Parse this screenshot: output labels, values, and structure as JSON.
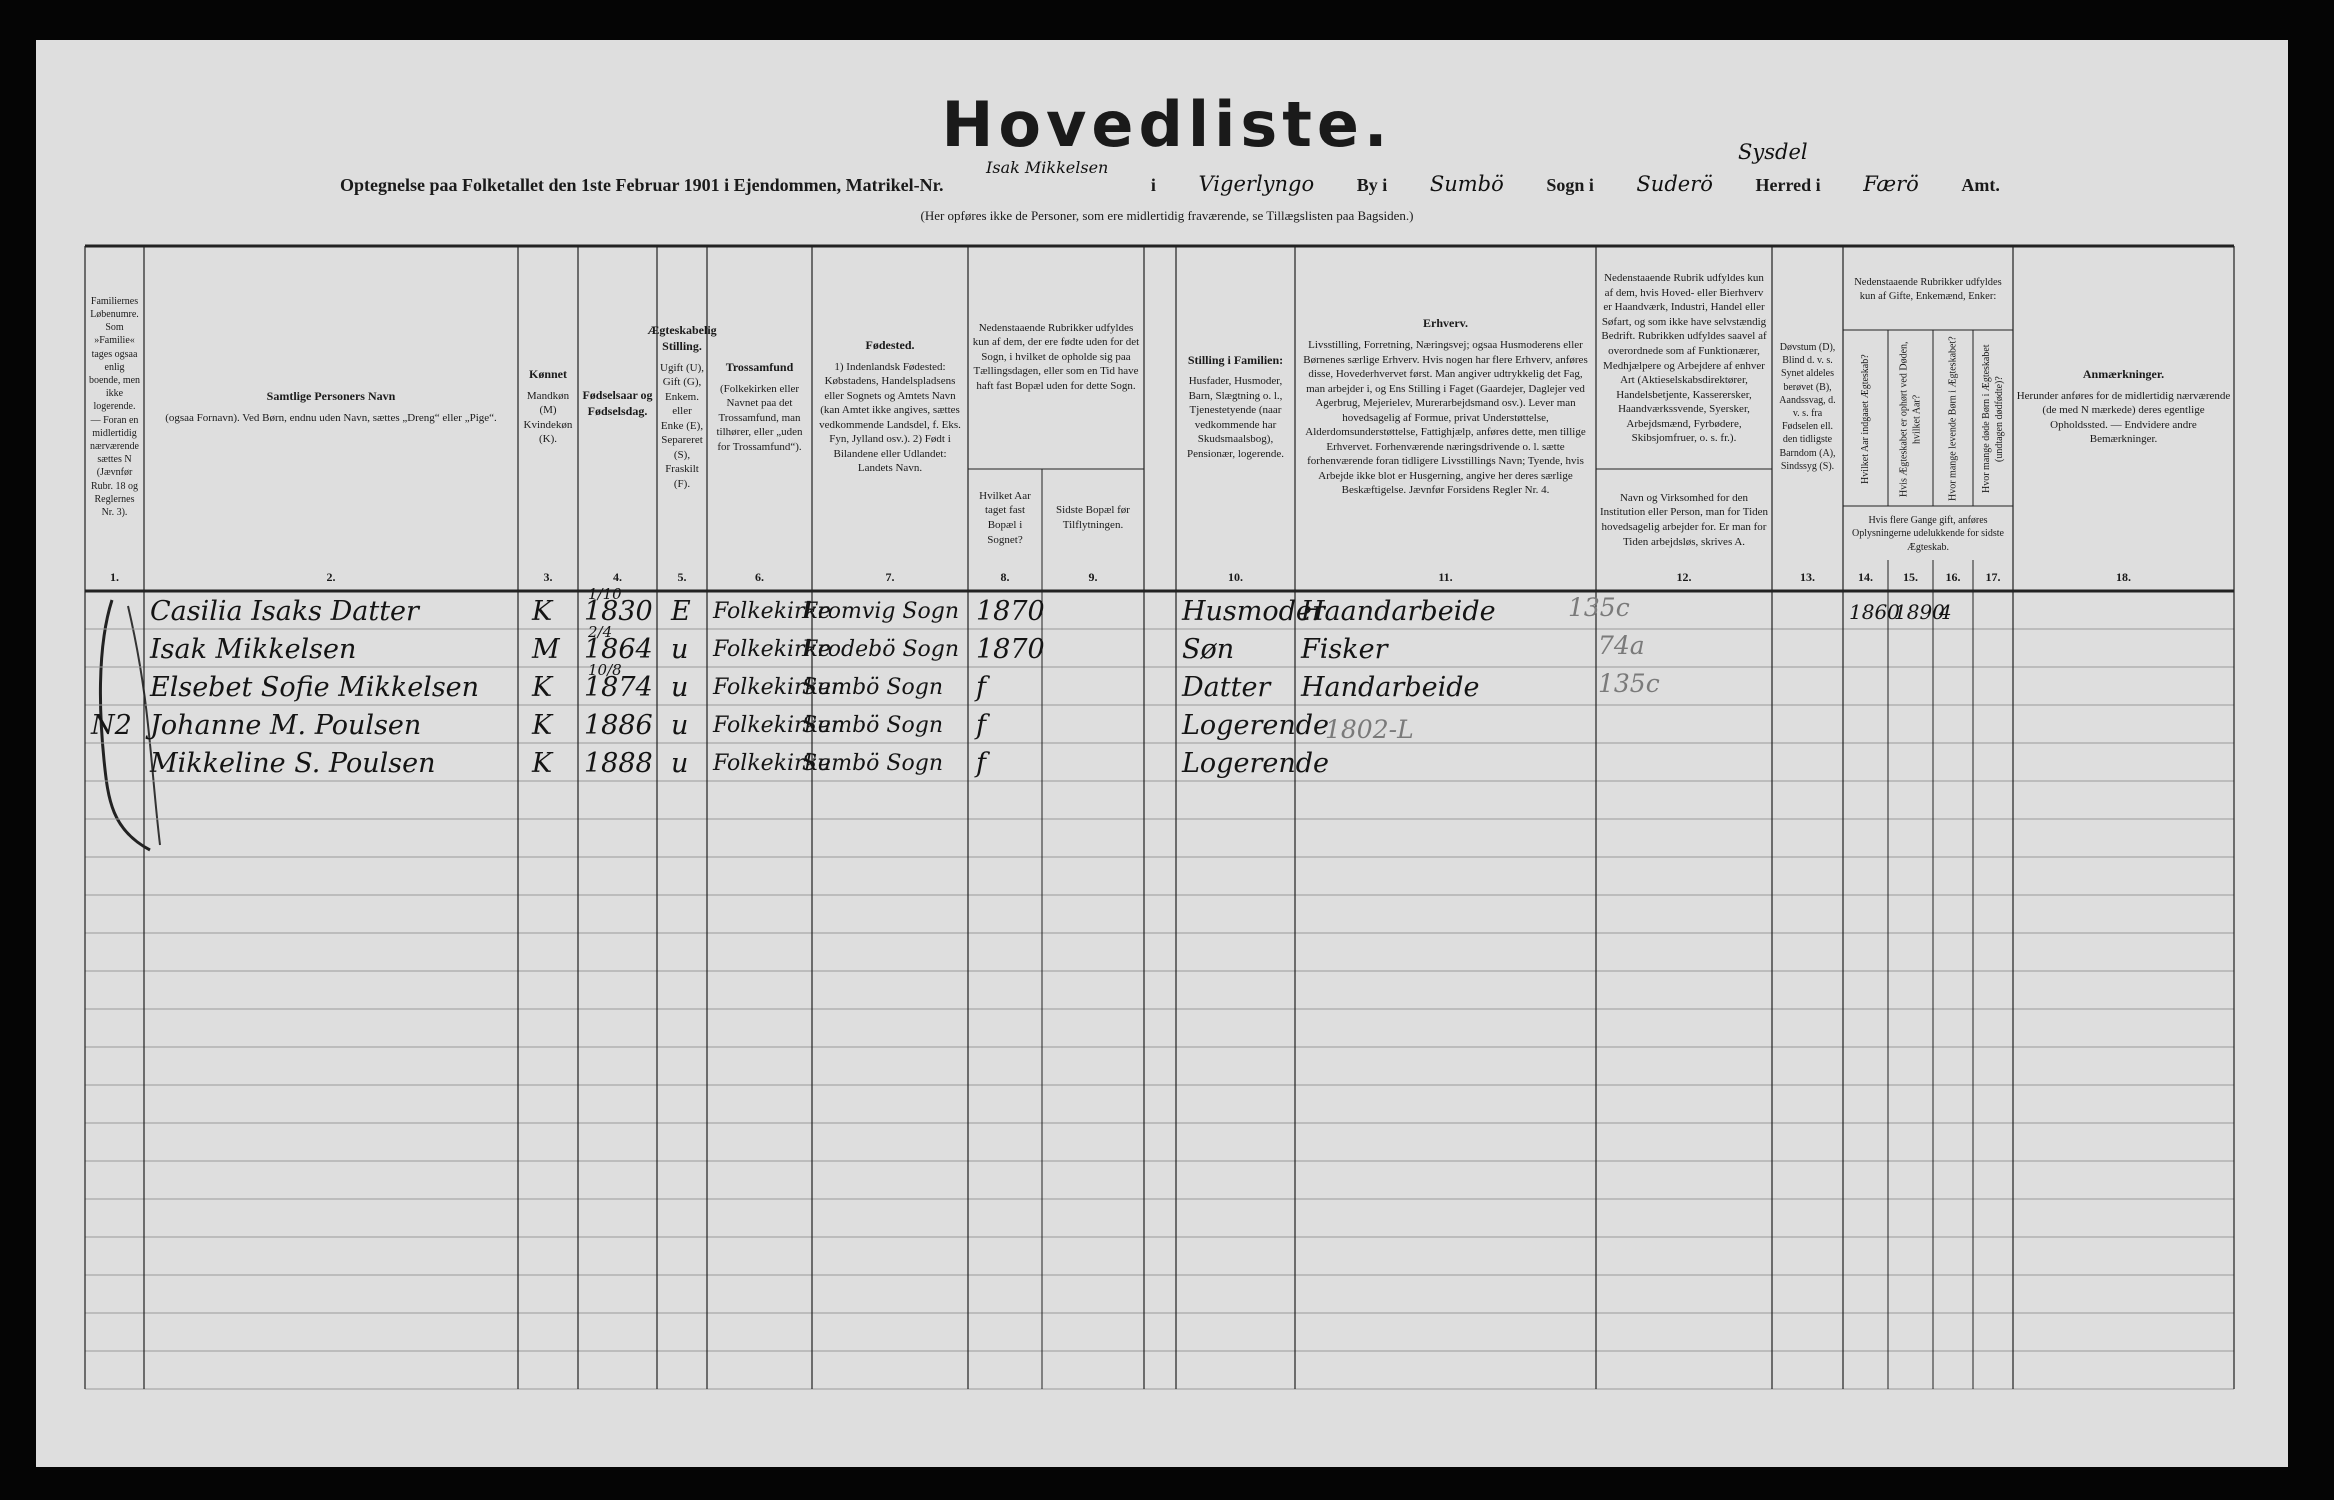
{
  "header": {
    "title": "Hovedliste.",
    "form_line": {
      "p1": "Optegnelse paa Folketallet den 1ste Februar 1901 i Ejendommen, Matrikel-Nr.",
      "matrikel": "Isak Mikkelsen",
      "p2": "i",
      "place": "Vigerlyngo",
      "p3": "By i",
      "by": "Sumbö",
      "p4": "Sogn i",
      "sogn": "Suderö",
      "p5": "Herred i",
      "herred_above": "Sysdel",
      "amt": "Færö",
      "p6": "Amt."
    },
    "note": "(Her opføres ikke de Personer, som ere midlertidig fraværende, se Tillægslisten paa Bagsiden.)"
  },
  "groups": {
    "born_outside": "Nedenstaaende Rubrikker udfyldes kun af dem, der ere fødte uden for det Sogn, i hvilket de opholde sig paa Tællingsdagen, eller som en Tid have haft fast Bopæl uden for dette Sogn.",
    "married": "Nedenstaaende Rubrikker udfyldes kun af Gifte, Enkemænd, Enker:",
    "married_note": "Hvis flere Gange gift, anføres Oplysningerne udelukkende for sidste Ægteskab."
  },
  "columns": [
    {
      "number": "1.",
      "text": "Familiernes Løbenumre. Som »Familie« tages ogsaa enlig boende, men ikke logerende. — Foran en midlertidig nærværende sættes N (Jævnfør Rubr. 18 og Reglernes Nr. 3)."
    },
    {
      "number": "2.",
      "title": "Samtlige Personers Navn",
      "text": "(ogsaa Fornavn). Ved Børn, endnu uden Navn, sættes „Dreng“ eller „Pige“."
    },
    {
      "number": "3.",
      "title": "Kønnet",
      "text": "Mandkøn (M) Kvindekøn (K)."
    },
    {
      "number": "4.",
      "title": "Fødselsaar og Fødselsdag."
    },
    {
      "number": "5.",
      "title": "Ægteskabelig Stilling.",
      "text": "Ugift (U), Gift (G), Enkem. eller Enke (E), Separeret (S), Fraskilt (F)."
    },
    {
      "number": "6.",
      "title": "Trossamfund",
      "text": "(Folkekirken eller Navnet paa det Trossamfund, man tilhører, eller „uden for Trossamfund“)."
    },
    {
      "number": "7.",
      "title": "Fødested.",
      "text": "1) Indenlandsk Fødested: Købstadens, Handelspladsens eller Sognets og Amtets Navn (kan Amtet ikke angives, sættes vedkommende Landsdel, f. Eks. Fyn, Jylland osv.). 2) Født i Bilandene eller Udlandet: Landets Navn."
    },
    {
      "number": "8.",
      "text": "Hvilket Aar taget fast Bopæl i Sognet?"
    },
    {
      "number": "9.",
      "text": "Sidste Bopæl før Tilflytningen."
    },
    {
      "number": "10.",
      "title": "Stilling i Familien:",
      "text": "Husfader, Husmoder, Barn, Slægtning o. l., Tjenestetyende (naar vedkommende har Skudsmaalsbog), Pensionær, logerende."
    },
    {
      "number": "11.",
      "title": "Erhverv.",
      "text": "Livsstilling, Forretning, Næringsvej; ogsaa Husmoderens eller Børnenes særlige Erhverv. Hvis nogen har flere Erhverv, anføres disse, Hovederhvervet først. Man angiver udtrykkelig det Fag, man arbejder i, og Ens Stilling i Faget (Gaardejer, Daglejer ved Agerbrug, Mejerielev, Murerarbejdsmand osv.). Lever man hovedsagelig af Formue, privat Understøttelse, Alderdomsunderstøttelse, Fattighjælp, anføres dette, men tillige Erhvervet. Forhenværende næringsdrivende o. l. sætte forhenværende foran tidligere Livsstillings Navn; Tyende, hvis Arbejde ikke blot er Husgerning, angive her deres særlige Beskæftigelse. Jævnfør Forsidens Regler Nr. 4."
    },
    {
      "number": "12.",
      "text": "Nedenstaaende Rubrik udfyldes kun af dem, hvis Hoved- eller Bierhverv er Haandværk, Industri, Handel eller Søfart, og som ikke have selvstændig Bedrift. Rubrikken udfyldes saavel af overordnede som af Funktionærer, Medhjælpere og Arbejdere af enhver Art (Aktieselskabsdirektører, Handelsbetjente, Kasserersker, Haandværkssvende, Syersker, Arbejdsmænd, Fyrbødere, Skibsjomfruer, o. s. fr.).",
      "text2": "Navn og Virksomhed for den Institution eller Person, man for Tiden hovedsagelig arbejder for. Er man for Tiden arbejdsløs, skrives A."
    },
    {
      "number": "13.",
      "text": "Døvstum (D), Blind d. v. s. Synet aldeles berøvet (B), Aandssvag, d. v. s. fra Fødselen ell. den tidligste Barndom (A), Sindssyg (S)."
    },
    {
      "number": "14.",
      "text": "Hvilket Aar indgaaet Ægteskab?"
    },
    {
      "number": "15.",
      "text": "Hvis Ægteskabet er ophørt ved Døden, hvilket Aar?"
    },
    {
      "number": "16.",
      "text": "Hvor mange levende Børn i Ægteskabet?"
    },
    {
      "number": "17.",
      "text": "Hvor mange døde Børn i Ægteskabet (undtagen dødfødte)?"
    },
    {
      "number": "18.",
      "title": "Anmærkninger.",
      "text": "Herunder anføres for de midlertidig nærværende (de med N mærkede) deres egentlige Opholdssted. — Endvidere andre Bemærkninger."
    }
  ],
  "rows": [
    {
      "name": "Casilia Isaks Datter",
      "sex": "K",
      "birth_day": "1/10",
      "birth_year": "1830",
      "civil": "E",
      "religion": "Folkekirke",
      "birthplace": "Fromvig Sogn",
      "year_settled": "1870",
      "position": "Husmoder",
      "occupation": "Haandarbeide",
      "pencil": "135c",
      "marriage_year": "1860",
      "marriage_end": "1890",
      "children_living": "4"
    },
    {
      "name": "Isak Mikkelsen",
      "sex": "M",
      "birth_day": "2/4",
      "birth_year": "1864",
      "civil": "u",
      "religion": "Folkekirke",
      "birthplace": "Frodebö Sogn",
      "year_settled": "1870",
      "position": "Søn",
      "occupation": "Fisker",
      "pencil": "74a"
    },
    {
      "name": "Elsebet Sofie Mikkelsen",
      "sex": "K",
      "birth_day": "10/8",
      "birth_year": "1874",
      "civil": "u",
      "religion": "Folkekirken",
      "birthplace": "Sumbö Sogn",
      "year_settled": "f",
      "position": "Datter",
      "occupation": "Handarbeide",
      "pencil": "135c"
    },
    {
      "family": "N2",
      "name": "Johanne M. Poulsen",
      "sex": "K",
      "birth_year": "1886",
      "civil": "u",
      "religion": "Folkekirken",
      "birthplace": "Sumbö Sogn",
      "year_settled": "f",
      "position": "Logerende",
      "pencil_b": "1802-L"
    },
    {
      "name": "Mikkeline S. Poulsen",
      "sex": "K",
      "birth_year": "1888",
      "civil": "u",
      "religion": "Folkekirke",
      "birthplace": "Sumbö Sogn",
      "year_settled": "f",
      "position": "Logerende"
    }
  ]
}
